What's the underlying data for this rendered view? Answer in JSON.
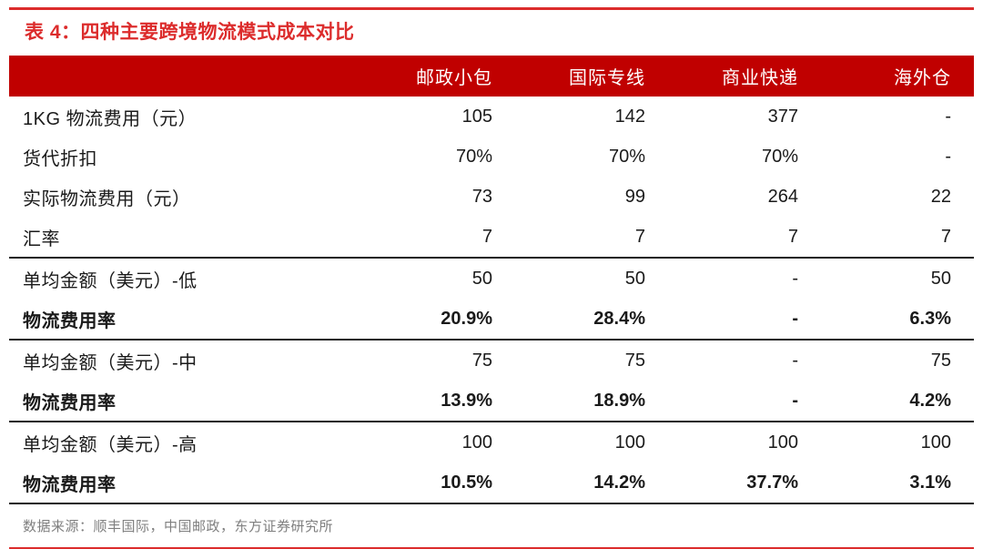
{
  "chart_data": {
    "type": "table",
    "title": "表 4：四种主要跨境物流模式成本对比",
    "columns": [
      "",
      "邮政小包",
      "国际专线",
      "商业快递",
      "海外仓"
    ],
    "rows": [
      {
        "label": "1KG 物流费用（元）",
        "values": [
          "105",
          "142",
          "377",
          "-"
        ],
        "bold": false,
        "separator_above": false
      },
      {
        "label": "货代折扣",
        "values": [
          "70%",
          "70%",
          "70%",
          "-"
        ],
        "bold": false,
        "separator_above": false
      },
      {
        "label": "实际物流费用（元）",
        "values": [
          "73",
          "99",
          "264",
          "22"
        ],
        "bold": false,
        "separator_above": false
      },
      {
        "label": "汇率",
        "values": [
          "7",
          "7",
          "7",
          "7"
        ],
        "bold": false,
        "separator_above": false
      },
      {
        "label": "单均金额（美元）-低",
        "values": [
          "50",
          "50",
          "-",
          "50"
        ],
        "bold": false,
        "separator_above": true
      },
      {
        "label": "物流费用率",
        "values": [
          "20.9%",
          "28.4%",
          "-",
          "6.3%"
        ],
        "bold": true,
        "separator_above": false
      },
      {
        "label": "单均金额（美元）-中",
        "values": [
          "75",
          "75",
          "-",
          "75"
        ],
        "bold": false,
        "separator_above": true
      },
      {
        "label": "物流费用率",
        "values": [
          "13.9%",
          "18.9%",
          "-",
          "4.2%"
        ],
        "bold": true,
        "separator_above": false
      },
      {
        "label": "单均金额（美元）-高",
        "values": [
          "100",
          "100",
          "100",
          "100"
        ],
        "bold": false,
        "separator_above": true
      },
      {
        "label": "物流费用率",
        "values": [
          "10.5%",
          "14.2%",
          "37.7%",
          "3.1%"
        ],
        "bold": true,
        "separator_above": false
      }
    ],
    "source": "数据来源：顺丰国际，中国邮政，东方证券研究所",
    "layout": {
      "grid": false,
      "legend_position": "none"
    }
  },
  "colors": {
    "accent_red": "#DC2C2C",
    "header_red": "#C00000",
    "header_text": "#FFFFFF",
    "body_text": "#1A1A1A",
    "separator_black": "#1C1C1C",
    "source_gray": "#7F7F7F"
  }
}
